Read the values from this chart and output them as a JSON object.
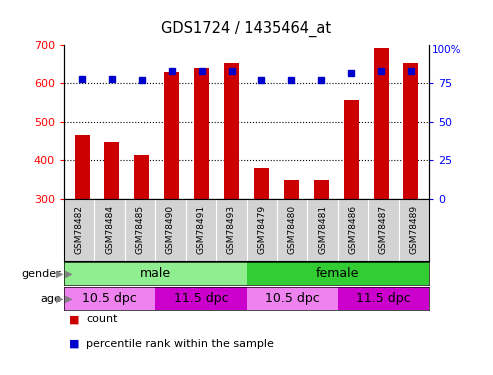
{
  "title": "GDS1724 / 1435464_at",
  "samples": [
    "GSM78482",
    "GSM78484",
    "GSM78485",
    "GSM78490",
    "GSM78491",
    "GSM78493",
    "GSM78479",
    "GSM78480",
    "GSM78481",
    "GSM78486",
    "GSM78487",
    "GSM78489"
  ],
  "counts": [
    465,
    448,
    413,
    629,
    641,
    652,
    380,
    348,
    350,
    557,
    691,
    652
  ],
  "percentiles": [
    78,
    78,
    77,
    83,
    83,
    83,
    77,
    77,
    77,
    82,
    83,
    83
  ],
  "ymin": 300,
  "ymax": 700,
  "yticks": [
    300,
    400,
    500,
    600,
    700
  ],
  "y2min": 0,
  "y2max": 100,
  "y2ticks_main": [
    0,
    25,
    50,
    75
  ],
  "bar_color": "#cc0000",
  "dot_color": "#0000cc",
  "plot_bg": "#ffffff",
  "sample_bg": "#d3d3d3",
  "gender_labels": [
    {
      "label": "male",
      "start": 0,
      "end": 6,
      "color": "#90ee90"
    },
    {
      "label": "female",
      "start": 6,
      "end": 12,
      "color": "#32cd32"
    }
  ],
  "age_labels": [
    {
      "label": "10.5 dpc",
      "start": 0,
      "end": 3,
      "color": "#ee82ee"
    },
    {
      "label": "11.5 dpc",
      "start": 3,
      "end": 6,
      "color": "#cc00cc"
    },
    {
      "label": "10.5 dpc",
      "start": 6,
      "end": 9,
      "color": "#ee82ee"
    },
    {
      "label": "11.5 dpc",
      "start": 9,
      "end": 12,
      "color": "#cc00cc"
    }
  ],
  "legend_items": [
    {
      "label": "count",
      "color": "#cc0000"
    },
    {
      "label": "percentile rank within the sample",
      "color": "#0000cc"
    }
  ]
}
